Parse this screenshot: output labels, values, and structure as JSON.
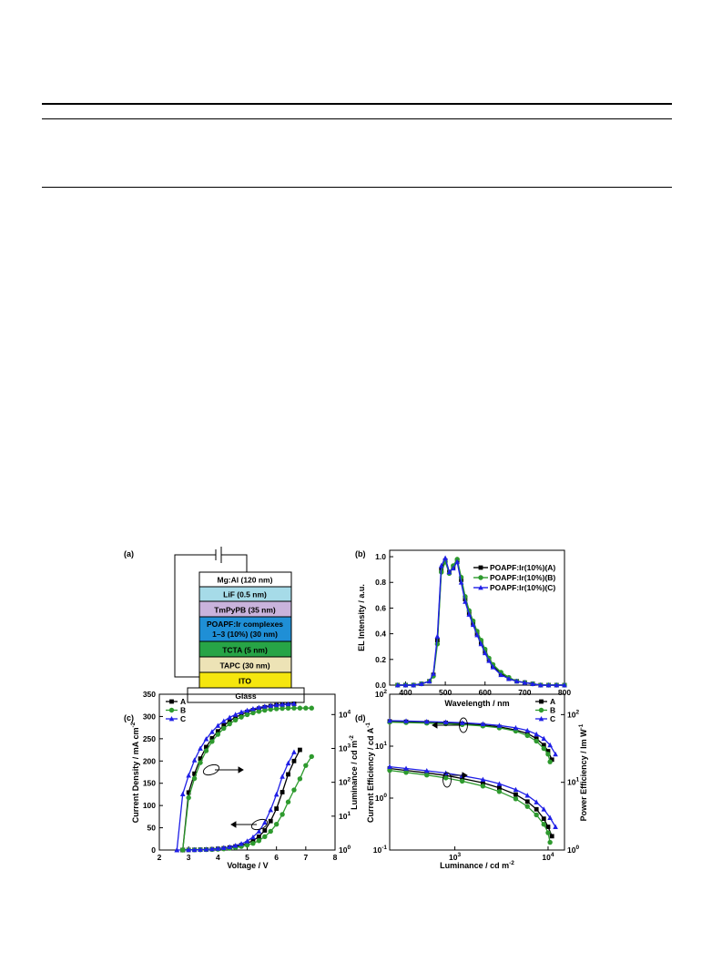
{
  "table_rules": {},
  "figure": {
    "panel_a": {
      "label": "(a)",
      "layers": [
        {
          "name": "Mg:Al (120 nm)",
          "color": "#ffffff"
        },
        {
          "name": "LiF (0.5 nm)",
          "color": "#a6dbe8"
        },
        {
          "name": "TmPyPB (35 nm)",
          "color": "#c9b3dc"
        },
        {
          "name": "POAPF:Ir complexes",
          "line2": "1–3 (10%) (30 nm)",
          "color": "#1f8fd6"
        },
        {
          "name": "TCTA (5 nm)",
          "color": "#27a446"
        },
        {
          "name": "TAPC (30 nm)",
          "color": "#ede3b6"
        },
        {
          "name": "ITO",
          "color": "#f5e60e"
        },
        {
          "name": "Glass",
          "color": "#ffffff"
        }
      ]
    },
    "panel_b": {
      "label": "(b)",
      "xlabel": "Wavelength / nm",
      "ylabel": "EL Intensity / a.u.",
      "xticks": [
        "400",
        "500",
        "600",
        "700",
        "800"
      ],
      "yticks": [
        "0.0",
        "0.2",
        "0.4",
        "0.6",
        "0.8",
        "1.0"
      ],
      "legend": [
        "POAPF:Ir(10%)(A)",
        "POAPF:Ir(10%)(B)",
        "POAPF:Ir(10%)(C)"
      ]
    },
    "panel_c": {
      "label": "(c)",
      "xlabel": "Voltage / V",
      "ylabel_left": "Current Density / mA cm",
      "ylabel_left_sup": "-2",
      "ylabel_right": "Luminance / cd m",
      "ylabel_right_sup": "-2",
      "xticks": [
        "2",
        "3",
        "4",
        "5",
        "6",
        "7",
        "8"
      ],
      "yticks_left": [
        "0",
        "50",
        "100",
        "150",
        "200",
        "250",
        "300",
        "350"
      ],
      "yticks_right": [
        {
          "base": "10",
          "exp": "0"
        },
        {
          "base": "10",
          "exp": "1"
        },
        {
          "base": "10",
          "exp": "2"
        },
        {
          "base": "10",
          "exp": "3"
        },
        {
          "base": "10",
          "exp": "4"
        }
      ],
      "legend": [
        "A",
        "B",
        "C"
      ]
    },
    "panel_d": {
      "label": "(d)",
      "xlabel": "Luminance / cd m",
      "xlabel_sup": "-2",
      "ylabel_left": "Current Efficiency / cd A",
      "ylabel_left_sup": "-1",
      "ylabel_right": "Power Efficiency / lm W",
      "ylabel_right_sup": "-1",
      "xticks": [
        {
          "base": "10",
          "exp": "3"
        },
        {
          "base": "10",
          "exp": "4"
        }
      ],
      "yticks_left": [
        {
          "base": "10",
          "exp": "-1"
        },
        {
          "base": "10",
          "exp": "0"
        },
        {
          "base": "10",
          "exp": "1"
        },
        {
          "base": "10",
          "exp": "2"
        }
      ],
      "yticks_right": [
        {
          "base": "10",
          "exp": "0"
        },
        {
          "base": "10",
          "exp": "1"
        },
        {
          "base": "10",
          "exp": "2"
        }
      ],
      "legend": [
        "A",
        "B",
        "C"
      ]
    }
  },
  "chart_data": [
    {
      "panel": "(b)",
      "type": "line",
      "xlabel": "Wavelength / nm",
      "ylabel": "EL Intensity / a.u.",
      "xlim": [
        360,
        800
      ],
      "ylim": [
        0,
        1.05
      ],
      "series": [
        {
          "name": "POAPF:Ir(10%)(A)",
          "color": "#000000",
          "marker": "square",
          "x": [
            380,
            400,
            420,
            440,
            460,
            470,
            480,
            490,
            500,
            510,
            520,
            530,
            540,
            550,
            560,
            570,
            580,
            590,
            600,
            610,
            620,
            640,
            660,
            680,
            700,
            720,
            740,
            760,
            780,
            800
          ],
          "y": [
            0,
            0,
            0,
            0.01,
            0.03,
            0.08,
            0.35,
            0.9,
            0.97,
            0.88,
            0.92,
            0.97,
            0.82,
            0.67,
            0.56,
            0.48,
            0.4,
            0.33,
            0.26,
            0.2,
            0.15,
            0.09,
            0.05,
            0.03,
            0.02,
            0.01,
            0,
            0,
            0,
            0
          ]
        },
        {
          "name": "POAPF:Ir(10%)(B)",
          "color": "#2e9a2e",
          "marker": "circle",
          "x": [
            380,
            400,
            420,
            440,
            460,
            470,
            480,
            490,
            500,
            510,
            520,
            530,
            540,
            550,
            560,
            570,
            580,
            590,
            600,
            610,
            620,
            640,
            660,
            680,
            700,
            720,
            740,
            760,
            780,
            800
          ],
          "y": [
            0,
            0,
            0,
            0.01,
            0.03,
            0.07,
            0.32,
            0.88,
            0.96,
            0.87,
            0.93,
            0.98,
            0.84,
            0.69,
            0.58,
            0.5,
            0.42,
            0.35,
            0.28,
            0.21,
            0.16,
            0.1,
            0.06,
            0.03,
            0.02,
            0.01,
            0,
            0,
            0,
            0
          ]
        },
        {
          "name": "POAPF:Ir(10%)(C)",
          "color": "#1f1fe6",
          "marker": "triangle",
          "x": [
            380,
            400,
            420,
            440,
            460,
            470,
            480,
            490,
            500,
            510,
            520,
            530,
            540,
            550,
            560,
            570,
            580,
            590,
            600,
            610,
            620,
            640,
            660,
            680,
            700,
            720,
            740,
            760,
            780,
            800
          ],
          "y": [
            0,
            0,
            0,
            0.01,
            0.03,
            0.09,
            0.38,
            0.93,
            0.99,
            0.88,
            0.91,
            0.96,
            0.8,
            0.65,
            0.55,
            0.47,
            0.39,
            0.32,
            0.25,
            0.19,
            0.14,
            0.08,
            0.05,
            0.03,
            0.02,
            0.01,
            0,
            0,
            0,
            0
          ]
        }
      ]
    },
    {
      "panel": "(c)",
      "type": "line",
      "xlabel": "Voltage / V",
      "ylabel": "Current Density / mA cm-2",
      "y2label": "Luminance / cd m-2",
      "xlim": [
        2,
        8
      ],
      "ylim": [
        0,
        350
      ],
      "y2lim_log10": [
        0,
        4.6
      ],
      "series": [
        {
          "name": "A",
          "axis": "left",
          "color": "#000000",
          "marker": "square",
          "x": [
            2.8,
            3.0,
            3.2,
            3.4,
            3.6,
            3.8,
            4.0,
            4.2,
            4.4,
            4.6,
            4.8,
            5.0,
            5.2,
            5.4,
            5.6,
            5.8,
            6.0,
            6.2,
            6.4,
            6.6,
            6.8
          ],
          "y": [
            0.2,
            0.3,
            0.5,
            0.8,
            1.2,
            1.8,
            2.7,
            3.9,
            5.6,
            8,
            11,
            15,
            21,
            30,
            44,
            65,
            93,
            130,
            170,
            200,
            225
          ]
        },
        {
          "name": "B",
          "axis": "left",
          "color": "#2e9a2e",
          "marker": "circle",
          "x": [
            2.8,
            3.0,
            3.2,
            3.4,
            3.6,
            3.8,
            4.0,
            4.2,
            4.4,
            4.6,
            4.8,
            5.0,
            5.2,
            5.4,
            5.6,
            5.8,
            6.0,
            6.2,
            6.4,
            6.6,
            6.8,
            7.0,
            7.2
          ],
          "y": [
            0.1,
            0.2,
            0.3,
            0.5,
            0.8,
            1.2,
            1.8,
            2.7,
            3.9,
            5.6,
            8,
            11,
            15,
            21,
            30,
            42,
            58,
            80,
            108,
            135,
            160,
            190,
            210
          ]
        },
        {
          "name": "C",
          "axis": "left",
          "color": "#1f1fe6",
          "marker": "triangle",
          "x": [
            2.6,
            2.8,
            3.0,
            3.2,
            3.4,
            3.6,
            3.8,
            4.0,
            4.2,
            4.4,
            4.6,
            4.8,
            5.0,
            5.2,
            5.4,
            5.6,
            5.8,
            6.0,
            6.2,
            6.4,
            6.6
          ],
          "y": [
            0.1,
            0.2,
            0.4,
            0.6,
            1,
            1.5,
            2.3,
            3.4,
            5,
            7,
            10,
            14,
            20,
            29,
            42,
            62,
            90,
            125,
            165,
            195,
            220
          ]
        },
        {
          "name": "A",
          "axis": "right",
          "color": "#000000",
          "marker": "square",
          "x": [
            2.8,
            3.0,
            3.2,
            3.4,
            3.6,
            3.8,
            4.0,
            4.2,
            4.4,
            4.6,
            4.8,
            5.0,
            5.2,
            5.4,
            5.6,
            5.8,
            6.0,
            6.2,
            6.4,
            6.6
          ],
          "y": [
            1,
            50,
            180,
            500,
            1100,
            2000,
            3200,
            4800,
            6500,
            8300,
            10000,
            12000,
            13500,
            15000,
            16500,
            17800,
            18800,
            19500,
            20200,
            20800
          ]
        },
        {
          "name": "B",
          "axis": "right",
          "color": "#2e9a2e",
          "marker": "circle",
          "x": [
            2.8,
            3.0,
            3.2,
            3.4,
            3.6,
            3.8,
            4.0,
            4.2,
            4.4,
            4.6,
            4.8,
            5.0,
            5.2,
            5.4,
            5.6,
            5.8,
            6.0,
            6.2,
            6.4,
            6.6,
            6.8,
            7.0,
            7.2
          ],
          "y": [
            1,
            35,
            130,
            380,
            850,
            1600,
            2600,
            3900,
            5300,
            6900,
            8400,
            9900,
            11200,
            12400,
            13400,
            14200,
            14800,
            15200,
            15400,
            15500,
            15500,
            15500,
            15500
          ]
        },
        {
          "name": "C",
          "axis": "right",
          "color": "#1f1fe6",
          "marker": "triangle",
          "x": [
            2.6,
            2.8,
            3.0,
            3.2,
            3.4,
            3.6,
            3.8,
            4.0,
            4.2,
            4.4,
            4.6,
            4.8,
            5.0,
            5.2,
            5.4,
            5.6,
            5.8,
            6.0,
            6.2,
            6.4,
            6.6
          ],
          "y": [
            1,
            45,
            160,
            450,
            1000,
            1900,
            3100,
            4700,
            6400,
            8200,
            10000,
            11800,
            13300,
            14800,
            16200,
            17400,
            18400,
            19200,
            19900,
            20500,
            21000
          ]
        }
      ]
    },
    {
      "panel": "(d)",
      "type": "line",
      "xlabel": "Luminance / cd m-2",
      "ylabel": "Current Efficiency / cd A-1",
      "y2label": "Power Efficiency / lm W-1",
      "x_scale": "log",
      "xlim": [
        200,
        15000
      ],
      "ylim": [
        0.1,
        100
      ],
      "y2lim": [
        1,
        200
      ],
      "series": [
        {
          "name": "A",
          "axis": "left",
          "color": "#000000",
          "marker": "square",
          "x": [
            200,
            300,
            500,
            800,
            1200,
            2000,
            3000,
            4500,
            6000,
            7500,
            9000,
            10000,
            11000
          ],
          "y": [
            30,
            29.5,
            28.8,
            28,
            27,
            25.5,
            23.5,
            20.5,
            17.5,
            14,
            10.5,
            8,
            5.5
          ]
        },
        {
          "name": "B",
          "axis": "left",
          "color": "#2e9a2e",
          "marker": "circle",
          "x": [
            200,
            300,
            500,
            800,
            1200,
            2000,
            3000,
            4500,
            6000,
            7500,
            9000,
            10000,
            10500
          ],
          "y": [
            29,
            28.5,
            27.8,
            27,
            26,
            24.5,
            22.5,
            19.5,
            16,
            12.5,
            9,
            7,
            5
          ]
        },
        {
          "name": "C",
          "axis": "left",
          "color": "#1f1fe6",
          "marker": "triangle",
          "x": [
            200,
            300,
            500,
            800,
            1200,
            2000,
            3000,
            4500,
            6000,
            7500,
            9000,
            10500,
            12000
          ],
          "y": [
            31,
            30.5,
            29.8,
            29,
            28.2,
            26.8,
            25,
            22.5,
            20,
            17,
            14,
            10.5,
            7
          ]
        },
        {
          "name": "A",
          "axis": "right",
          "color": "#000000",
          "marker": "square",
          "x": [
            200,
            300,
            500,
            800,
            1200,
            2000,
            3000,
            4500,
            6000,
            7500,
            9000,
            10000,
            11000
          ],
          "y": [
            16,
            15,
            13.8,
            12.6,
            11.4,
            9.8,
            8.3,
            6.6,
            5.2,
            4,
            2.9,
            2.2,
            1.6
          ]
        },
        {
          "name": "B",
          "axis": "right",
          "color": "#2e9a2e",
          "marker": "circle",
          "x": [
            200,
            300,
            500,
            800,
            1200,
            2000,
            3000,
            4500,
            6000,
            7500,
            9000,
            10000,
            10500
          ],
          "y": [
            15,
            14,
            12.8,
            11.6,
            10.4,
            8.8,
            7.3,
            5.7,
            4.4,
            3.3,
            2.4,
            1.8,
            1.3
          ]
        },
        {
          "name": "C",
          "axis": "right",
          "color": "#1f1fe6",
          "marker": "triangle",
          "x": [
            200,
            300,
            500,
            800,
            1200,
            2000,
            3000,
            4500,
            6000,
            7500,
            9000,
            10500,
            12000
          ],
          "y": [
            17,
            16,
            14.8,
            13.7,
            12.5,
            11,
            9.5,
            7.8,
            6.4,
            5.1,
            4,
            3,
            2.2
          ]
        }
      ]
    }
  ]
}
